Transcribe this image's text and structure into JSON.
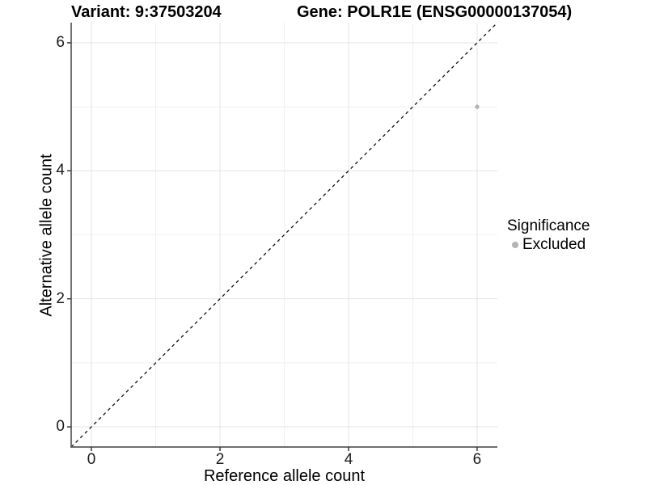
{
  "header": {
    "variant": "Variant: 9:37503204",
    "gene": "Gene: POLR1E (ENSG00000137054)"
  },
  "legend": {
    "title": "Significance",
    "items": [
      {
        "label": "Excluded",
        "color": "#b3b3b3"
      }
    ]
  },
  "chart_data": {
    "type": "scatter",
    "title": "Variant: 9:37503204    Gene: POLR1E (ENSG00000137054)",
    "xlabel": "Reference allele count",
    "ylabel": "Alternative allele count",
    "xlim": [
      -0.315,
      6.315
    ],
    "ylim": [
      -0.315,
      6.315
    ],
    "x_ticks": [
      0,
      2,
      4,
      6
    ],
    "y_ticks": [
      0,
      2,
      4,
      6
    ],
    "x_minor_ticks": [
      1,
      3,
      5
    ],
    "y_minor_ticks": [
      1,
      3,
      5
    ],
    "grid": true,
    "legend_position": "right",
    "identity_line": {
      "style": "dashed",
      "equation": "y = x"
    },
    "series": [
      {
        "name": "Excluded",
        "color": "#b3b3b3",
        "points": [
          {
            "x": 6,
            "y": 5
          }
        ]
      }
    ]
  },
  "colors": {
    "grid_major": "#e4e4e4",
    "grid_minor": "#f1f1f1",
    "axis_line": "#595959",
    "tick_mark": "#2e2e2e",
    "identity_line": "#111111",
    "point": "#b3b3b3"
  }
}
